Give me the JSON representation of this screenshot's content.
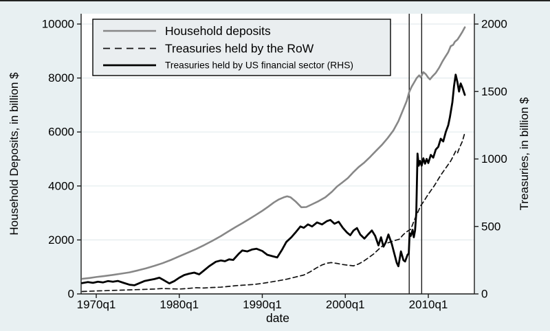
{
  "figure": {
    "background_color": "#e8f0f2",
    "plot_background": "#ffffff",
    "grid_color": "#e3ebee",
    "axis_color": "#1a1a1a",
    "text_color": "#000000",
    "top_border_color": "#222222",
    "legend_background": "#eaeef0",
    "legend_border": "#000000"
  },
  "chart_data": {
    "type": "line",
    "title": "",
    "x_axis": {
      "title": "date",
      "ticks": [
        {
          "label": "1970q1",
          "year": 1970
        },
        {
          "label": "1980q1",
          "year": 1980
        },
        {
          "label": "1990q1",
          "year": 1990
        },
        {
          "label": "2000q1",
          "year": 2000
        },
        {
          "label": "2010q1",
          "year": 2010
        }
      ],
      "range_years": [
        1968.2,
        2015.5
      ]
    },
    "y_axis_left": {
      "title": "Household Deposits, in billion $",
      "ticks": [
        0,
        2000,
        4000,
        6000,
        8000,
        10000
      ],
      "range": [
        0,
        10000
      ]
    },
    "y_axis_right": {
      "title": "Treasuries, in billion $",
      "ticks": [
        0,
        500,
        1000,
        1500,
        2000
      ],
      "range": [
        0,
        2000
      ]
    },
    "grid": true,
    "legend": {
      "position": "top-left",
      "entries": [
        "Household deposits",
        "Treasuries held by the RoW",
        "Treasuries held by US financial sector (RHS)"
      ]
    },
    "vertical_lines": [
      {
        "x_year": 2007.7
      },
      {
        "x_year": 2009.2
      }
    ],
    "series": [
      {
        "name": "Household deposits",
        "axis": "left",
        "style": "solid",
        "color": "#878787",
        "width": 2.6,
        "points": [
          [
            1968.3,
            560
          ],
          [
            1969.2,
            590
          ],
          [
            1970,
            625
          ],
          [
            1971,
            665
          ],
          [
            1972,
            705
          ],
          [
            1973,
            750
          ],
          [
            1974,
            800
          ],
          [
            1975,
            870
          ],
          [
            1976,
            950
          ],
          [
            1977,
            1040
          ],
          [
            1978,
            1140
          ],
          [
            1979,
            1260
          ],
          [
            1980,
            1395
          ],
          [
            1981,
            1525
          ],
          [
            1982,
            1660
          ],
          [
            1983,
            1810
          ],
          [
            1984,
            1970
          ],
          [
            1985,
            2140
          ],
          [
            1986,
            2330
          ],
          [
            1986.8,
            2480
          ],
          [
            1987.6,
            2620
          ],
          [
            1988.4,
            2770
          ],
          [
            1989.2,
            2920
          ],
          [
            1990,
            3080
          ],
          [
            1990.7,
            3230
          ],
          [
            1991.4,
            3390
          ],
          [
            1992,
            3500
          ],
          [
            1992.6,
            3580
          ],
          [
            1993,
            3615
          ],
          [
            1993.4,
            3580
          ],
          [
            1994,
            3430
          ],
          [
            1994.7,
            3210
          ],
          [
            1995.3,
            3220
          ],
          [
            1996,
            3320
          ],
          [
            1996.8,
            3440
          ],
          [
            1997.6,
            3580
          ],
          [
            1998.4,
            3790
          ],
          [
            1999,
            3980
          ],
          [
            1999.6,
            4120
          ],
          [
            2000.3,
            4290
          ],
          [
            2001,
            4520
          ],
          [
            2001.6,
            4700
          ],
          [
            2002.3,
            4870
          ],
          [
            2003,
            5080
          ],
          [
            2003.7,
            5300
          ],
          [
            2004.4,
            5520
          ],
          [
            2005.1,
            5770
          ],
          [
            2005.8,
            6060
          ],
          [
            2006.4,
            6400
          ],
          [
            2007,
            6850
          ],
          [
            2007.4,
            7150
          ],
          [
            2007.7,
            7480
          ],
          [
            2008,
            7680
          ],
          [
            2008.3,
            7840
          ],
          [
            2008.6,
            8000
          ],
          [
            2008.9,
            8100
          ],
          [
            2009.1,
            8020
          ],
          [
            2009.4,
            8220
          ],
          [
            2009.7,
            8140
          ],
          [
            2010,
            8010
          ],
          [
            2010.2,
            7950
          ],
          [
            2010.5,
            8060
          ],
          [
            2010.9,
            8190
          ],
          [
            2011.3,
            8380
          ],
          [
            2011.7,
            8610
          ],
          [
            2012,
            8760
          ],
          [
            2012.4,
            8960
          ],
          [
            2012.7,
            9180
          ],
          [
            2013,
            9230
          ],
          [
            2013.2,
            9340
          ],
          [
            2013.5,
            9420
          ],
          [
            2013.8,
            9560
          ],
          [
            2014.1,
            9710
          ],
          [
            2014.4,
            9880
          ]
        ]
      },
      {
        "name": "Treasuries held by the RoW",
        "axis": "right",
        "style": "dashed",
        "color": "#111111",
        "width": 1.7,
        "points": [
          [
            1968.3,
            18
          ],
          [
            1970,
            22
          ],
          [
            1971,
            24
          ],
          [
            1972,
            26
          ],
          [
            1973,
            28
          ],
          [
            1974,
            30
          ],
          [
            1975,
            32
          ],
          [
            1976,
            34
          ],
          [
            1977,
            36
          ],
          [
            1978,
            40
          ],
          [
            1979,
            38
          ],
          [
            1980,
            36
          ],
          [
            1981,
            40
          ],
          [
            1982,
            46
          ],
          [
            1983,
            44
          ],
          [
            1984,
            48
          ],
          [
            1985,
            50
          ],
          [
            1986,
            56
          ],
          [
            1987,
            62
          ],
          [
            1988,
            66
          ],
          [
            1989,
            70
          ],
          [
            1990,
            78
          ],
          [
            1991,
            88
          ],
          [
            1992,
            98
          ],
          [
            1993,
            110
          ],
          [
            1994,
            125
          ],
          [
            1995,
            140
          ],
          [
            1995.8,
            165
          ],
          [
            1996.5,
            192
          ],
          [
            1997.2,
            215
          ],
          [
            1997.8,
            228
          ],
          [
            1998.3,
            232
          ],
          [
            1999,
            226
          ],
          [
            1999.7,
            218
          ],
          [
            2000.4,
            212
          ],
          [
            2001,
            208
          ],
          [
            2001.6,
            222
          ],
          [
            2002.2,
            242
          ],
          [
            2002.8,
            268
          ],
          [
            2003.4,
            295
          ],
          [
            2004,
            330
          ],
          [
            2004.7,
            368
          ],
          [
            2005.3,
            382
          ],
          [
            2005.9,
            395
          ],
          [
            2006.5,
            405
          ],
          [
            2007,
            440
          ],
          [
            2007.5,
            465
          ],
          [
            2007.9,
            480
          ],
          [
            2008.3,
            545
          ],
          [
            2008.7,
            600
          ],
          [
            2009.1,
            655
          ],
          [
            2009.5,
            690
          ],
          [
            2009.9,
            730
          ],
          [
            2010.3,
            765
          ],
          [
            2010.7,
            800
          ],
          [
            2011.1,
            840
          ],
          [
            2011.5,
            880
          ],
          [
            2011.9,
            915
          ],
          [
            2012.3,
            950
          ],
          [
            2012.7,
            985
          ],
          [
            2013,
            1020
          ],
          [
            2013.3,
            1058
          ],
          [
            2013.5,
            1042
          ],
          [
            2013.8,
            1090
          ],
          [
            2014.1,
            1130
          ],
          [
            2014.4,
            1195
          ]
        ]
      },
      {
        "name": "Treasuries held by US financial sector (RHS)",
        "axis": "right",
        "style": "solid",
        "color": "#000000",
        "width": 2.8,
        "points": [
          [
            1968.3,
            80
          ],
          [
            1969,
            88
          ],
          [
            1969.6,
            82
          ],
          [
            1970.2,
            90
          ],
          [
            1970.8,
            85
          ],
          [
            1971.4,
            95
          ],
          [
            1972,
            90
          ],
          [
            1972.6,
            96
          ],
          [
            1973.2,
            84
          ],
          [
            1974,
            68
          ],
          [
            1974.6,
            64
          ],
          [
            1975.2,
            80
          ],
          [
            1975.8,
            95
          ],
          [
            1976.4,
            103
          ],
          [
            1977,
            110
          ],
          [
            1977.6,
            120
          ],
          [
            1978.2,
            100
          ],
          [
            1978.8,
            78
          ],
          [
            1979.4,
            95
          ],
          [
            1980,
            120
          ],
          [
            1980.6,
            140
          ],
          [
            1981.2,
            150
          ],
          [
            1981.8,
            158
          ],
          [
            1982.4,
            145
          ],
          [
            1983,
            175
          ],
          [
            1983.6,
            205
          ],
          [
            1984.4,
            238
          ],
          [
            1985,
            248
          ],
          [
            1985.5,
            242
          ],
          [
            1986,
            256
          ],
          [
            1986.5,
            252
          ],
          [
            1987.2,
            300
          ],
          [
            1987.6,
            322
          ],
          [
            1988.2,
            315
          ],
          [
            1988.8,
            330
          ],
          [
            1989.3,
            335
          ],
          [
            1990,
            318
          ],
          [
            1990.6,
            290
          ],
          [
            1991.2,
            280
          ],
          [
            1991.8,
            270
          ],
          [
            1992.4,
            330
          ],
          [
            1992.9,
            385
          ],
          [
            1993.5,
            420
          ],
          [
            1994,
            455
          ],
          [
            1994.6,
            500
          ],
          [
            1995,
            490
          ],
          [
            1995.5,
            515
          ],
          [
            1996,
            500
          ],
          [
            1996.6,
            530
          ],
          [
            1997.2,
            515
          ],
          [
            1997.8,
            540
          ],
          [
            1998.2,
            548
          ],
          [
            1998.7,
            520
          ],
          [
            1999.2,
            535
          ],
          [
            1999.7,
            490
          ],
          [
            2000.2,
            455
          ],
          [
            2000.6,
            435
          ],
          [
            2001,
            470
          ],
          [
            2001.4,
            488
          ],
          [
            2001.8,
            440
          ],
          [
            2002.3,
            410
          ],
          [
            2002.8,
            445
          ],
          [
            2003.2,
            470
          ],
          [
            2003.6,
            430
          ],
          [
            2004,
            360
          ],
          [
            2004.3,
            420
          ],
          [
            2004.6,
            350
          ],
          [
            2004.9,
            385
          ],
          [
            2005.2,
            440
          ],
          [
            2005.6,
            370
          ],
          [
            2005.9,
            300
          ],
          [
            2006.2,
            230
          ],
          [
            2006.4,
            205
          ],
          [
            2006.7,
            315
          ],
          [
            2007,
            250
          ],
          [
            2007.2,
            240
          ],
          [
            2007.5,
            290
          ],
          [
            2007.65,
            300
          ],
          [
            2007.75,
            450
          ],
          [
            2007.9,
            430
          ],
          [
            2008.1,
            475
          ],
          [
            2008.25,
            420
          ],
          [
            2008.4,
            470
          ],
          [
            2008.55,
            600
          ],
          [
            2008.7,
            1040
          ],
          [
            2008.85,
            950
          ],
          [
            2009,
            985
          ],
          [
            2009.2,
            950
          ],
          [
            2009.4,
            1005
          ],
          [
            2009.6,
            965
          ],
          [
            2009.8,
            1000
          ],
          [
            2010,
            970
          ],
          [
            2010.3,
            1030
          ],
          [
            2010.6,
            1010
          ],
          [
            2010.9,
            1070
          ],
          [
            2011.2,
            1090
          ],
          [
            2011.5,
            1150
          ],
          [
            2011.8,
            1130
          ],
          [
            2012.1,
            1200
          ],
          [
            2012.4,
            1250
          ],
          [
            2012.6,
            1310
          ],
          [
            2012.9,
            1420
          ],
          [
            2013.1,
            1540
          ],
          [
            2013.3,
            1625
          ],
          [
            2013.5,
            1570
          ],
          [
            2013.7,
            1500
          ],
          [
            2013.9,
            1560
          ],
          [
            2014.1,
            1530
          ],
          [
            2014.4,
            1475
          ]
        ]
      }
    ]
  }
}
